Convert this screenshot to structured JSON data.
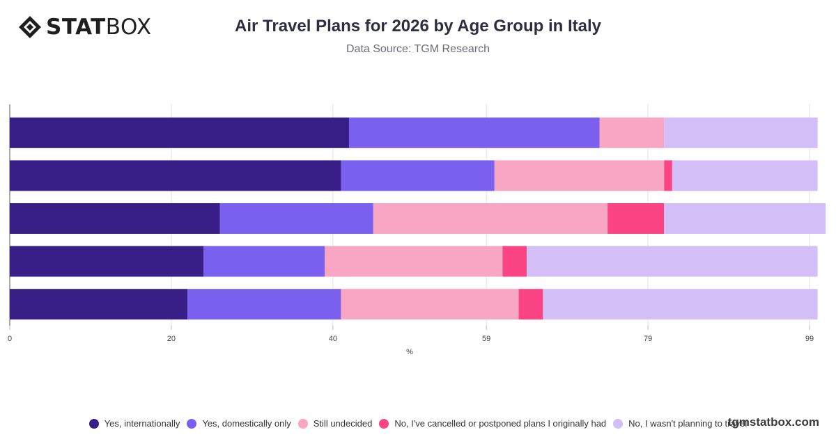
{
  "brand": {
    "logo_bold": "STAT",
    "logo_light": "BOX",
    "watermark": "tgmstatbox.com"
  },
  "chart_data": {
    "type": "bar",
    "orientation": "horizontal",
    "stacked": true,
    "title": "Air Travel Plans for 2026 by Age Group in Italy",
    "subtitle": "Data Source: TGM Research",
    "xlabel": "%",
    "ylabel": "",
    "xlim": [
      0,
      99
    ],
    "x_ticks": [
      0,
      20,
      40,
      59,
      79,
      99
    ],
    "grid": true,
    "legend_position": "bottom",
    "categories": [
      "",
      "",
      "",
      "",
      ""
    ],
    "series": [
      {
        "name": "Yes, internationally",
        "color": "#371f87",
        "values": [
          42,
          41,
          26,
          24,
          22
        ]
      },
      {
        "name": "Yes, domestically only",
        "color": "#7b5fef",
        "values": [
          31,
          19,
          19,
          15,
          19
        ]
      },
      {
        "name": "Still undecided",
        "color": "#f9a5c4",
        "values": [
          8,
          21,
          29,
          22,
          22
        ]
      },
      {
        "name": "No, I've cancelled or postponed plans I originally had",
        "color": "#fa4484",
        "values": [
          0,
          1,
          7,
          3,
          3
        ]
      },
      {
        "name": "No, I wasn't planning to travel",
        "color": "#d4bef8",
        "values": [
          19,
          18,
          20,
          36,
          34
        ]
      }
    ]
  }
}
